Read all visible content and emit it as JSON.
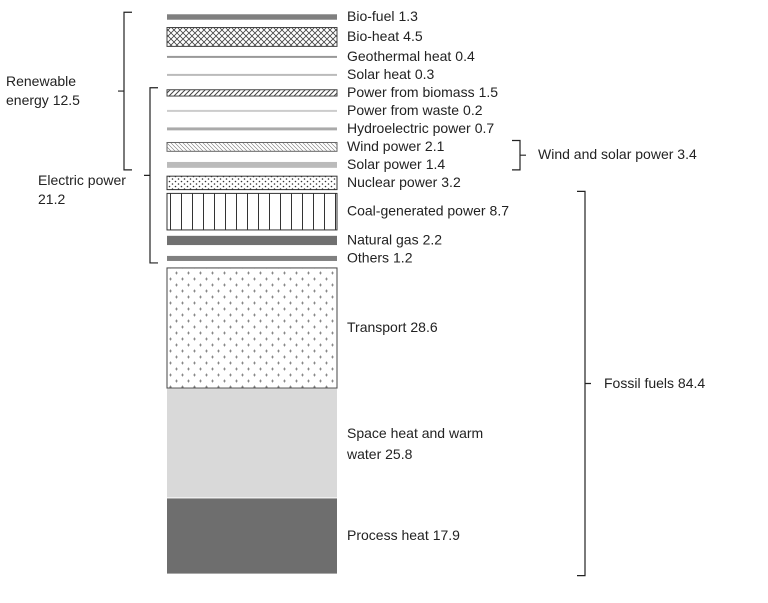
{
  "chart_data": {
    "type": "stacked-column",
    "series": [
      {
        "name": "Bio-fuel",
        "color": "#7f7f7f",
        "values": [
          1.3
        ]
      },
      {
        "name": "Bio-heat",
        "color": "#444444",
        "pattern": "crosshatch",
        "values": [
          4.5
        ]
      },
      {
        "name": "Geothermal  heat",
        "color": "#999999",
        "values": [
          0.4
        ]
      },
      {
        "name": "Solar heat",
        "color": "#bbbbbb",
        "values": [
          0.3
        ]
      },
      {
        "name": "Power from biomass",
        "color": "#444444",
        "pattern": "diagonal",
        "values": [
          1.5
        ]
      },
      {
        "name": "Power from waste",
        "color": "#cccccc",
        "values": [
          0.2
        ]
      },
      {
        "name": "Hydroelectric power",
        "color": "#aaaaaa",
        "values": [
          0.7
        ]
      },
      {
        "name": "Wind power",
        "color": "#666666",
        "pattern": "diagonal-fine",
        "values": [
          2.1
        ]
      },
      {
        "name": "Solar power",
        "color": "#bbbbbb",
        "values": [
          1.4
        ]
      },
      {
        "name": "Nuclear power",
        "color": "#333333",
        "pattern": "dots",
        "values": [
          3.2
        ]
      },
      {
        "name": "Coal-generated power",
        "color": "#333333",
        "pattern": "vertical-lines",
        "values": [
          8.7
        ]
      },
      {
        "name": "Natural gas",
        "color": "#707070",
        "values": [
          2.2
        ]
      },
      {
        "name": "Others",
        "color": "#808080",
        "values": [
          1.2
        ]
      },
      {
        "name": "Transport",
        "color": "#444444",
        "pattern": "plus",
        "values": [
          28.6
        ]
      },
      {
        "name": "Space heat and warm water",
        "color": "#d9d9d9",
        "values": [
          25.8
        ]
      },
      {
        "name": "Process heat",
        "color": "#6e6e6e",
        "values": [
          17.9
        ]
      }
    ],
    "groups": [
      {
        "name": "Renewable energy",
        "value": 12.5,
        "first": "Bio-fuel",
        "last": "Solar power",
        "side": "left"
      },
      {
        "name": "Electric power",
        "value": 21.2,
        "first": "Power from biomass",
        "last": "Others",
        "side": "left"
      },
      {
        "name": "Wind and solar power",
        "value": 3.4,
        "first": "Wind power",
        "last": "Solar power",
        "side": "right"
      },
      {
        "name": "Fossil fuels",
        "value": 84.4,
        "first": "Coal-generated power",
        "last": "Process heat",
        "side": "right"
      }
    ]
  }
}
